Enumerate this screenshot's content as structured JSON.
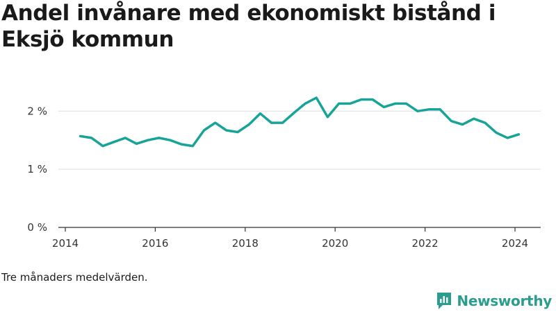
{
  "title": "Andel invånare med ekonomiskt bistånd i Eksjö kommun",
  "note": "Tre månaders medelvärden.",
  "logo": {
    "text": "Newsworthy",
    "icon": "newsworthy-chart-bubble-icon"
  },
  "colors": {
    "line": "#17a398",
    "grid": "#dddddd",
    "axis": "#333333",
    "brand": "#2a9d8f"
  },
  "chart_data": {
    "type": "line",
    "title": "Andel invånare med ekonomiskt bistånd i Eksjö kommun",
    "xlabel": "",
    "ylabel": "",
    "xlim": [
      2014,
      2024.6
    ],
    "ylim": [
      0,
      2.6
    ],
    "grid": true,
    "x_ticks": [
      2014,
      2016,
      2018,
      2020,
      2022,
      2024
    ],
    "x_tick_labels": [
      "2014",
      "2016",
      "2018",
      "2020",
      "2022",
      "2024"
    ],
    "y_ticks": [
      0,
      1,
      2
    ],
    "y_tick_labels": [
      "0 %",
      "1 %",
      "2 %"
    ],
    "series": [
      {
        "x": [
          "2014-05",
          "2014-08",
          "2014-11",
          "2015-02",
          "2015-05",
          "2015-08",
          "2015-11",
          "2016-02",
          "2016-05",
          "2016-08",
          "2016-11",
          "2017-02",
          "2017-05",
          "2017-08",
          "2017-11",
          "2018-02",
          "2018-05",
          "2018-08",
          "2018-11",
          "2019-02",
          "2019-05",
          "2019-08",
          "2019-11",
          "2020-02",
          "2020-05",
          "2020-08",
          "2020-11",
          "2021-02",
          "2021-05",
          "2021-08",
          "2021-11",
          "2022-02",
          "2022-05",
          "2022-08",
          "2022-11",
          "2023-02",
          "2023-05",
          "2023-08",
          "2023-11",
          "2024-02"
        ],
        "values": [
          1.57,
          1.54,
          1.4,
          1.47,
          1.54,
          1.44,
          1.5,
          1.54,
          1.5,
          1.43,
          1.4,
          1.67,
          1.8,
          1.67,
          1.64,
          1.77,
          1.96,
          1.8,
          1.8,
          1.97,
          2.13,
          2.23,
          1.9,
          2.13,
          2.13,
          2.2,
          2.2,
          2.07,
          2.13,
          2.13,
          2.0,
          2.03,
          2.03,
          1.83,
          1.77,
          1.87,
          1.8,
          1.63,
          1.54,
          1.6
        ]
      }
    ]
  }
}
